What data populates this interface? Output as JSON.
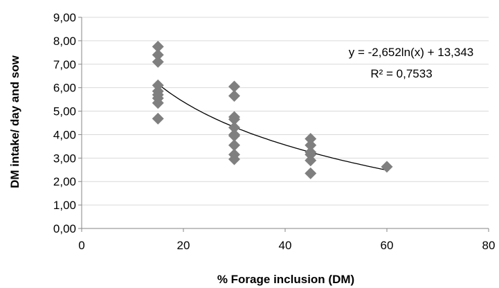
{
  "chart_data": {
    "type": "scatter",
    "title": "",
    "xlabel": "% Forage inclusion (DM)",
    "ylabel": "DM intake/ day and sow",
    "xlim": [
      0,
      80
    ],
    "ylim": [
      0,
      9
    ],
    "x_ticks": [
      0,
      20,
      40,
      60,
      80
    ],
    "y_ticks": [
      0,
      1,
      2,
      3,
      4,
      5,
      6,
      7,
      8,
      9
    ],
    "x_tick_labels": [
      "0",
      "20",
      "40",
      "60",
      "80"
    ],
    "y_tick_labels": [
      "0,00",
      "1,00",
      "2,00",
      "3,00",
      "4,00",
      "5,00",
      "6,00",
      "7,00",
      "8,00",
      "9,00"
    ],
    "grid": "horizontal",
    "marker": "diamond",
    "marker_color": "#7f7f7f",
    "series": [
      {
        "points": [
          [
            15,
            7.75
          ],
          [
            15,
            7.4
          ],
          [
            15,
            7.1
          ],
          [
            15,
            6.1
          ],
          [
            15,
            5.85
          ],
          [
            15,
            5.7
          ],
          [
            15,
            5.55
          ],
          [
            15,
            5.35
          ],
          [
            15,
            4.68
          ],
          [
            30,
            6.05
          ],
          [
            30,
            5.65
          ],
          [
            30,
            4.75
          ],
          [
            30,
            4.65
          ],
          [
            30,
            4.3
          ],
          [
            30,
            4.0
          ],
          [
            30,
            3.95
          ],
          [
            30,
            3.55
          ],
          [
            30,
            3.15
          ],
          [
            30,
            2.95
          ],
          [
            45,
            3.82
          ],
          [
            45,
            3.55
          ],
          [
            45,
            3.25
          ],
          [
            45,
            3.15
          ],
          [
            45,
            2.9
          ],
          [
            45,
            2.35
          ],
          [
            60,
            2.63
          ]
        ]
      }
    ],
    "trendline": {
      "type": "logarithmic",
      "a": -2.652,
      "b": 13.343,
      "x_range": [
        15,
        60
      ],
      "color": "#000000"
    },
    "annotations": {
      "equation": "y = -2,652ln(x) + 13,343",
      "r_squared": "R² = 0,7533"
    }
  }
}
